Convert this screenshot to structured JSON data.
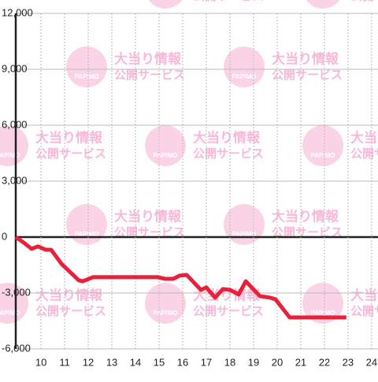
{
  "chart_data": {
    "type": "line",
    "x": [
      8.93,
      9.27,
      9.6,
      9.87,
      10.2,
      10.43,
      10.87,
      11.6,
      11.77,
      12.2,
      14.93,
      15.27,
      15.6,
      15.87,
      16.17,
      16.77,
      17.0,
      17.37,
      17.7,
      18.0,
      18.37,
      18.67,
      19.27,
      19.7,
      19.93,
      20.53,
      22.93
    ],
    "series": [
      {
        "color": "#e8203a",
        "values": [
          0,
          -300,
          -630,
          -500,
          -680,
          -680,
          -1440,
          -2320,
          -2370,
          -2150,
          -2150,
          -2240,
          -2240,
          -2070,
          -2030,
          -2830,
          -2700,
          -3250,
          -2790,
          -2830,
          -3080,
          -2370,
          -3170,
          -3250,
          -3340,
          -4310,
          -4310
        ]
      }
    ],
    "xlim": [
      8.93,
      24.27
    ],
    "xticks": [
      10,
      11,
      12,
      13,
      14,
      15,
      16,
      17,
      18,
      19,
      20,
      21,
      22,
      23,
      24
    ],
    "ylim": [
      -6000,
      12000
    ],
    "yticks": [
      {
        "value": -6000,
        "label": "-6,000"
      },
      {
        "value": -3000,
        "label": "-3,000"
      },
      0,
      {
        "value": 3000,
        "label": "3,000"
      },
      {
        "value": 6000,
        "label": "6,000"
      },
      {
        "value": 9000,
        "label": "9,000"
      },
      {
        "value": 12000,
        "label": "12,000"
      }
    ],
    "grid": true
  },
  "watermark": {
    "brand": "PAPIMO",
    "line1": "大当り情報",
    "line2": "公開サービス"
  }
}
